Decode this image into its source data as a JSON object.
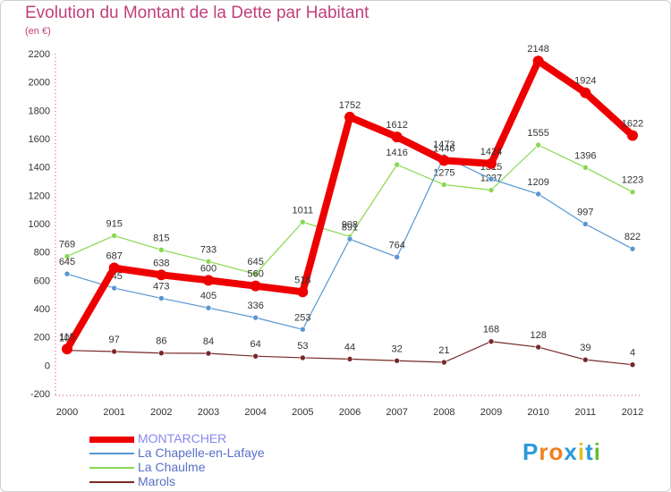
{
  "chart_data": {
    "type": "line",
    "title": "Evolution du Montant de la Dette par Habitant",
    "subtitle": "(en €)",
    "x": [
      "2000",
      "2001",
      "2002",
      "2003",
      "2004",
      "2005",
      "2006",
      "2007",
      "2008",
      "2009",
      "2010",
      "2011",
      "2012"
    ],
    "ylim": [
      -200,
      2200
    ],
    "yticks": [
      -200,
      0,
      200,
      400,
      600,
      800,
      1000,
      1200,
      1400,
      1600,
      1800,
      2000,
      2200
    ],
    "grid": false,
    "legend_position": "bottom-left",
    "series": [
      {
        "name": "La Chaulme",
        "color": "#88d850",
        "values": [
          769,
          915,
          815,
          733,
          645,
          1011,
          908,
          1416,
          1275,
          1237,
          1555,
          1396,
          1223
        ]
      },
      {
        "name": "La Chapelle-en-Lafaye",
        "color": "#5896d0",
        "values": [
          645,
          545,
          473,
          405,
          336,
          253,
          891,
          764,
          1473,
          1315,
          1209,
          997,
          822
        ]
      },
      {
        "name": "Marols",
        "color": "#782828",
        "values": [
          105,
          97,
          86,
          84,
          64,
          53,
          44,
          32,
          21,
          168,
          128,
          39,
          4
        ]
      },
      {
        "name": "MONTARCHER",
        "color": "#ee0000",
        "values": [
          115,
          687,
          638,
          600,
          560,
          518,
          1752,
          1612,
          1446,
          1424,
          2148,
          1924,
          1622
        ]
      }
    ],
    "legend": [
      {
        "name": "MONTARCHER",
        "color": "#ee0000",
        "text_color": "#8888ee"
      },
      {
        "name": "La Chapelle-en-Lafaye",
        "color": "#5896d0",
        "text_color": "#5870c8"
      },
      {
        "name": "La Chaulme",
        "color": "#88d850",
        "text_color": "#5870c8"
      },
      {
        "name": "Marols",
        "color": "#782828",
        "text_color": "#5870c8"
      }
    ]
  },
  "logo": {
    "text": "Proxiti",
    "letters": [
      {
        "ch": "P",
        "color": "#2a9ad8"
      },
      {
        "ch": "r",
        "color": "#f08020"
      },
      {
        "ch": "o",
        "color": "#f08020"
      },
      {
        "ch": "x",
        "color": "#2a9ad8"
      },
      {
        "ch": "i",
        "color": "#e0c020"
      },
      {
        "ch": "t",
        "color": "#2a9ad8"
      },
      {
        "ch": "i",
        "color": "#60c030"
      }
    ]
  }
}
